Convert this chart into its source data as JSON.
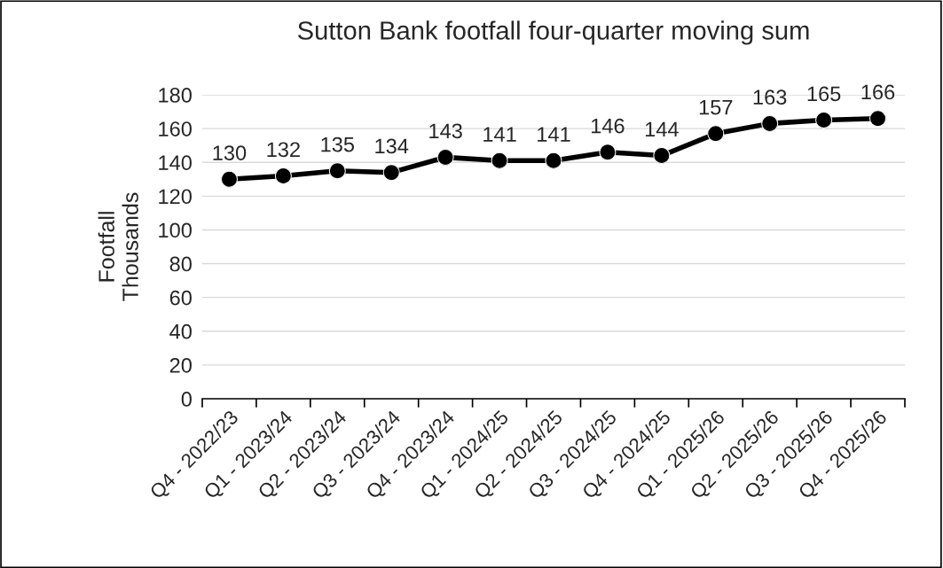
{
  "chart_data": {
    "type": "line",
    "title": "Sutton Bank footfall four-quarter moving sum",
    "ylabel": "Footfall\nThousands",
    "categories": [
      "Q4 - 2022/23",
      "Q1 - 2023/24",
      "Q2 - 2023/24",
      "Q3 - 2023/24",
      "Q4 - 2023/24",
      "Q1 - 2024/25",
      "Q2 - 2024/25",
      "Q3 - 2024/25",
      "Q4 - 2024/25",
      "Q1 - 2025/26",
      "Q2 - 2025/26",
      "Q3 - 2025/26",
      "Q4 - 2025/26"
    ],
    "series": [
      {
        "color": "#000000",
        "values": [
          130,
          132,
          135,
          134,
          143,
          141,
          141,
          146,
          144,
          157,
          163,
          165,
          166
        ]
      }
    ],
    "ylim": [
      0,
      180
    ],
    "yticks": [
      0,
      20,
      40,
      60,
      80,
      100,
      120,
      140,
      160,
      180
    ],
    "grid": "y",
    "marker": "circle",
    "line_style": "solid",
    "data_labels": true
  }
}
